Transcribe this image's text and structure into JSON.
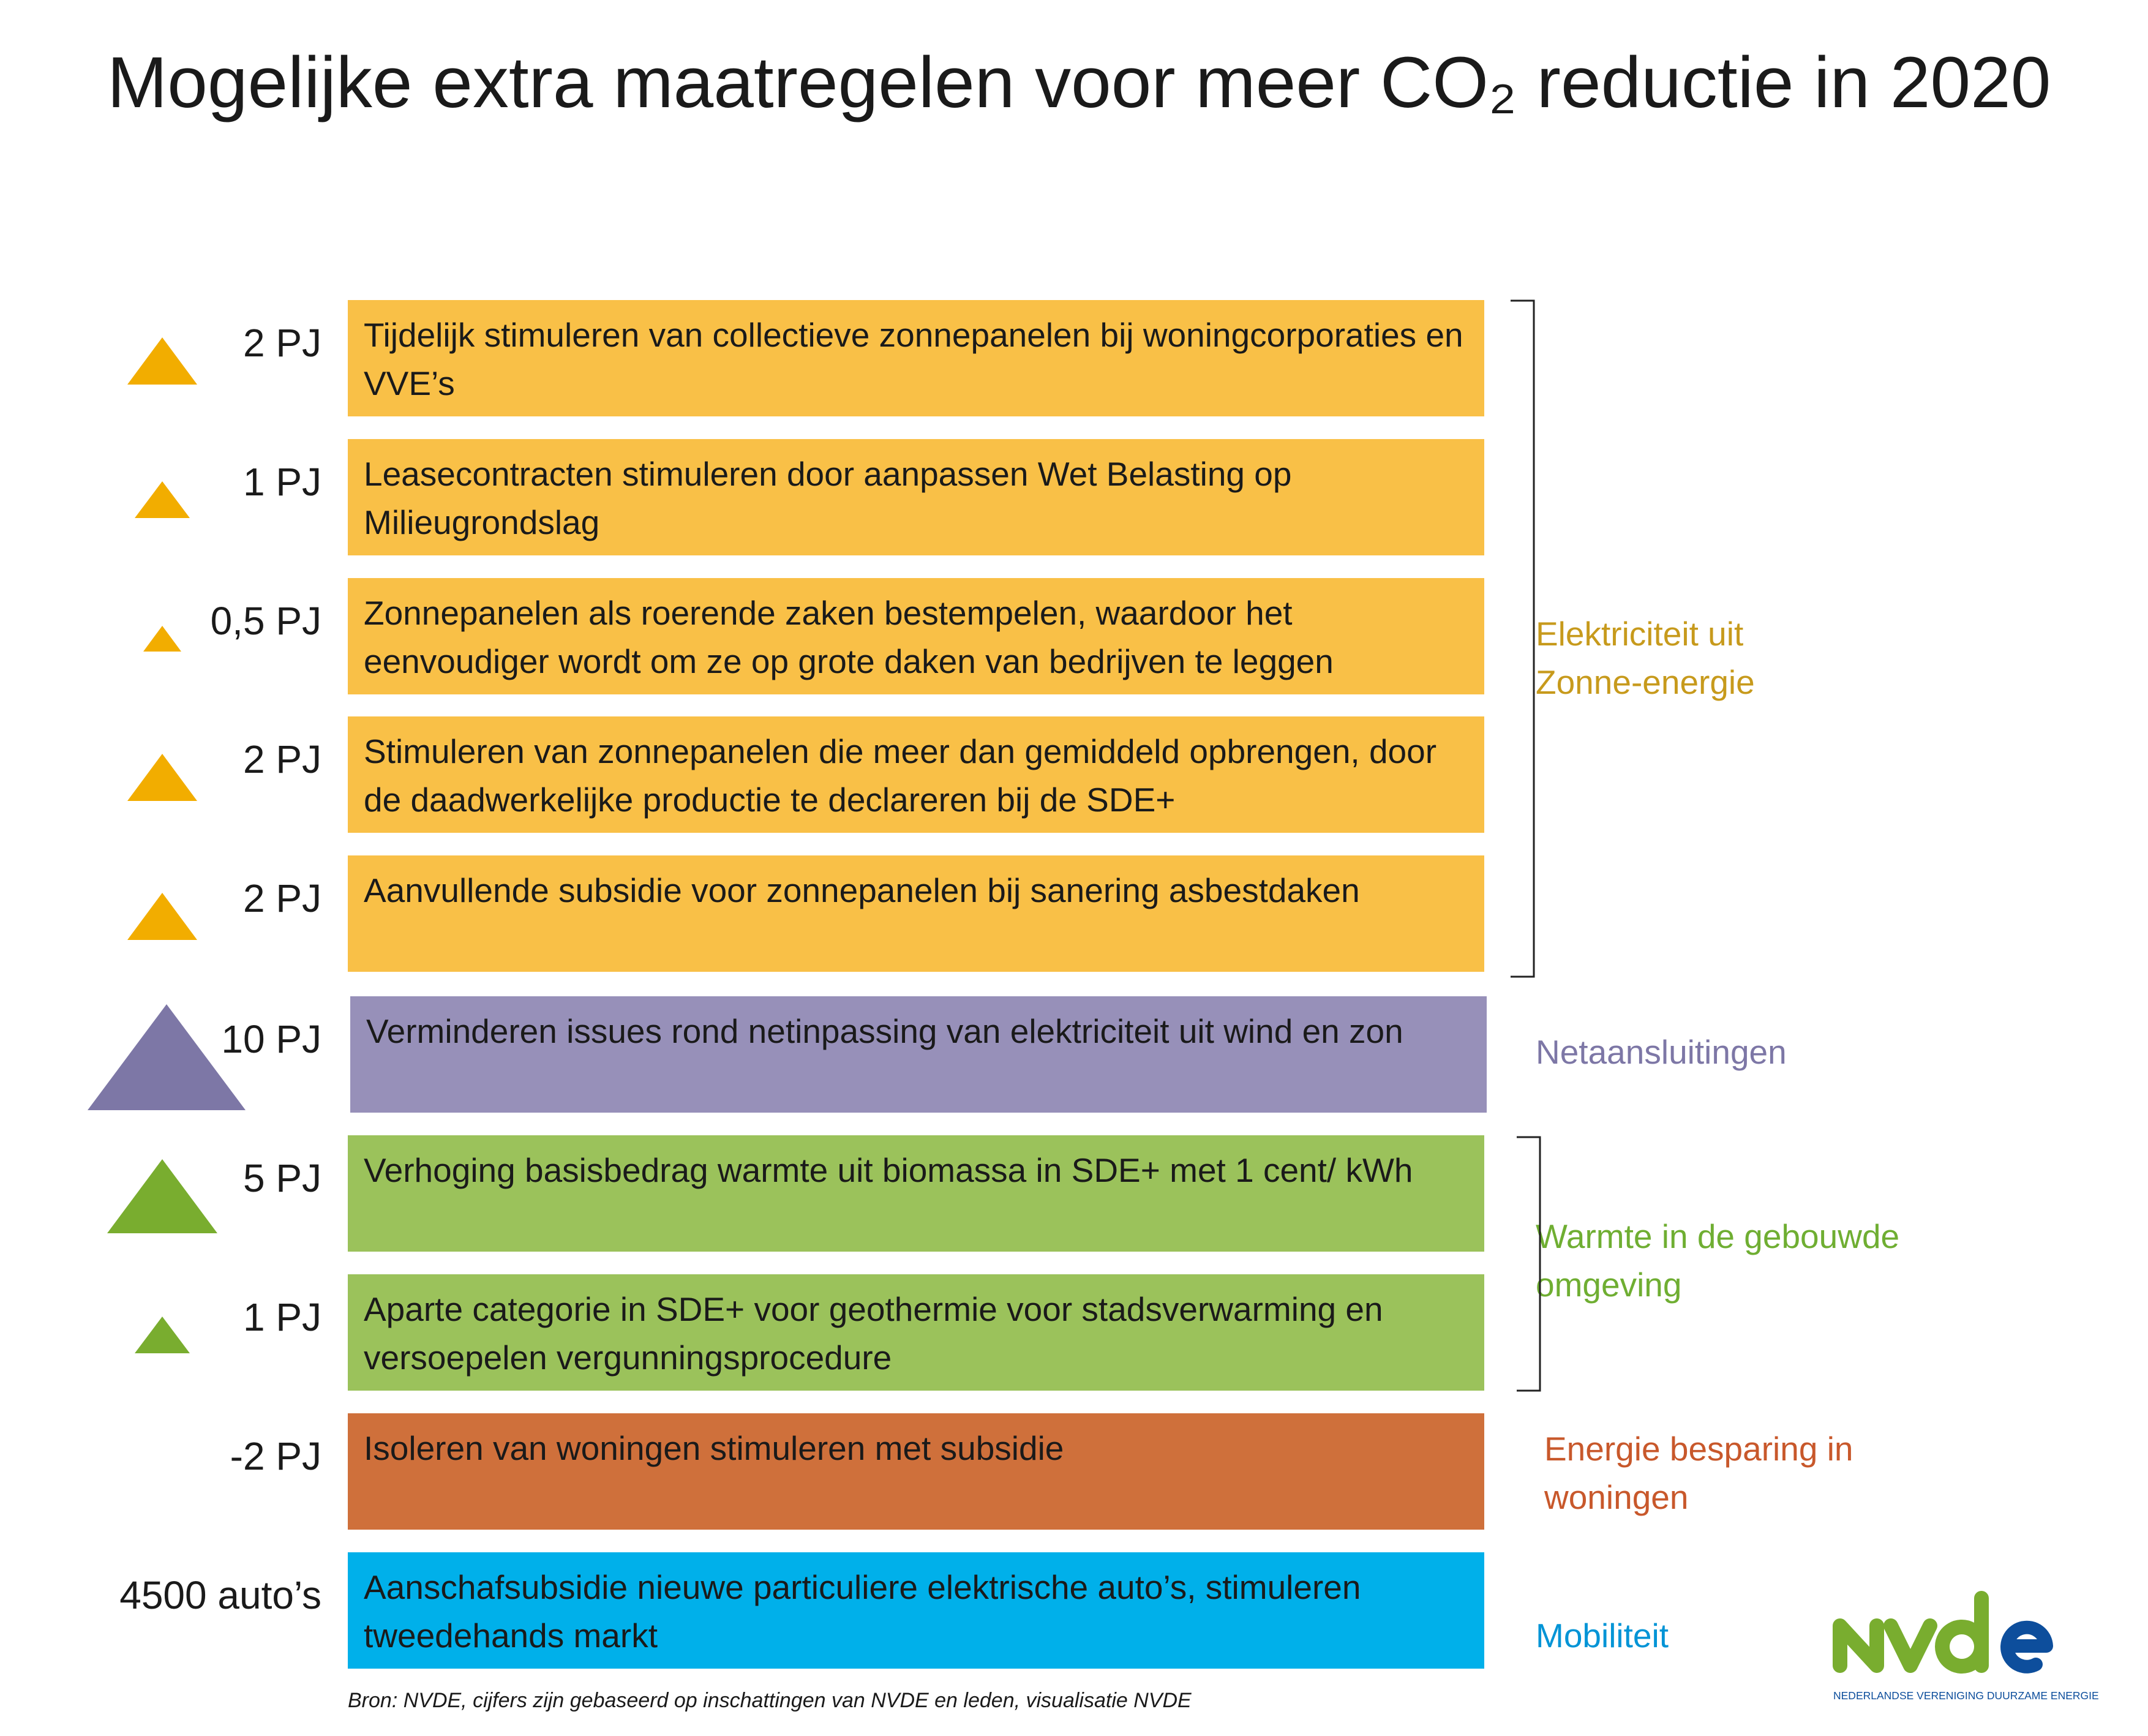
{
  "title": "Mogelijke extra maatregelen voor meer CO₂ reductie in 2020",
  "colors": {
    "solar": "#F9C047",
    "solar_triangle": "#F2AD00",
    "solar_text": "#C79A1C",
    "grid": "#9790B9",
    "grid_triangle": "#7D77A6",
    "grid_text": "#7D77A6",
    "heat": "#9BC25B",
    "heat_triangle": "#79AD2F",
    "heat_text": "#6FAE32",
    "savings": "#CF703B",
    "savings_text": "#C8582B",
    "mobility": "#00B0EA",
    "mobility_text": "#0094D6"
  },
  "measures": [
    {
      "amount": "2 PJ",
      "amount_value_pj": 2,
      "text": "Tijdelijk stimuleren van collectieve zonnepanelen bij woningcorporaties en VVE’s",
      "category": "solar",
      "icon": "triangle-up-icon"
    },
    {
      "amount": "1 PJ",
      "amount_value_pj": 1,
      "text": "Leasecontracten stimuleren door aanpassen Wet Belasting op Milieugrondslag",
      "category": "solar",
      "icon": "triangle-up-icon"
    },
    {
      "amount": "0,5 PJ",
      "amount_value_pj": 0.5,
      "text": "Zonnepanelen als roerende zaken bestempelen, waardoor het eenvoudiger wordt om ze op grote daken van bedrijven te leggen",
      "category": "solar",
      "icon": "triangle-up-icon"
    },
    {
      "amount": "2 PJ",
      "amount_value_pj": 2,
      "text": "Stimuleren van zonnepanelen die meer dan gemiddeld opbrengen, door de daadwerkelijke productie te declareren bij de SDE+",
      "category": "solar",
      "icon": "triangle-up-icon"
    },
    {
      "amount": "2 PJ",
      "amount_value_pj": 2,
      "text": "Aanvullende subsidie voor zonnepanelen bij sanering asbestdaken",
      "category": "solar",
      "icon": "triangle-up-icon"
    },
    {
      "amount": "10 PJ",
      "amount_value_pj": 10,
      "text": "Verminderen issues rond netinpassing van elektriciteit uit wind en zon",
      "category": "grid",
      "icon": "triangle-up-icon"
    },
    {
      "amount": "5 PJ",
      "amount_value_pj": 5,
      "text": "Verhoging basisbedrag warmte uit biomassa in SDE+ met 1 cent/ kWh",
      "category": "heat",
      "icon": "triangle-up-icon"
    },
    {
      "amount": "1 PJ",
      "amount_value_pj": 1,
      "text": "Aparte categorie in SDE+ voor geothermie voor stadsverwarming en versoepelen vergunningsprocedure",
      "category": "heat",
      "icon": "triangle-up-icon"
    },
    {
      "amount": "-2 PJ",
      "amount_value_pj": -2,
      "text": "Isoleren van woningen stimuleren met subsidie",
      "category": "savings",
      "icon": ""
    },
    {
      "amount": "4500 auto’s",
      "text": "Aanschafsubsidie nieuwe particuliere elektrische auto’s, stimuleren tweedehands markt",
      "category": "mobility",
      "icon": ""
    }
  ],
  "categories": {
    "solar": "Elektriciteit uit Zonne-energie",
    "grid": "Netaansluitingen",
    "heat": "Warmte in de gebouwde omgeving",
    "savings": "Energie besparing in woningen",
    "mobility": "Mobiliteit"
  },
  "source": "Bron: NVDE, cijfers zijn gebaseerd op inschattingen van NVDE en leden, visualisatie NVDE",
  "logo": {
    "letters": "nvde",
    "tagline": "NEDERLANDSE VERENIGING DUURZAME ENERGIE"
  }
}
